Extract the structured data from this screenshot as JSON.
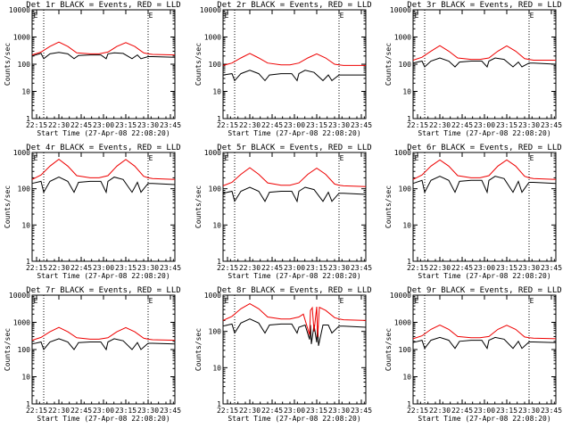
{
  "colors": {
    "events": "#000000",
    "lld": "#ee0000",
    "axis": "#000000"
  },
  "chart_data": [
    {
      "type": "line",
      "title": "Det 1r BLACK = Events, RED = LLD",
      "top_marker": "E",
      "xlabel": "Start Time (27-Apr-08 22:08:20)",
      "ylabel": "Counts/sec",
      "yscale": "log",
      "ylim": [
        1,
        10000
      ],
      "xlim": [
        22.2,
        23.8
      ],
      "x_ticks": [
        "22:15",
        "22:30",
        "22:45",
        "23:00",
        "23:15",
        "23:30",
        "23:45"
      ],
      "y_ticks": [
        "1",
        "10",
        "100",
        "1000",
        "10000"
      ],
      "vlines": [
        22.33,
        23.5
      ],
      "series": [
        {
          "name": "Events",
          "x": [
            22.2,
            22.3,
            22.33,
            22.4,
            22.5,
            22.6,
            22.67,
            22.72,
            22.85,
            22.97,
            23.03,
            23.05,
            23.12,
            23.22,
            23.32,
            23.38,
            23.42,
            23.5,
            23.55,
            23.8
          ],
          "y": [
            200,
            250,
            160,
            240,
            270,
            240,
            160,
            210,
            220,
            220,
            160,
            240,
            260,
            250,
            160,
            220,
            160,
            190,
            190,
            180
          ]
        },
        {
          "name": "LLD",
          "x": [
            22.2,
            22.3,
            22.4,
            22.5,
            22.6,
            22.7,
            22.85,
            22.95,
            23.05,
            23.15,
            23.25,
            23.35,
            23.45,
            23.5,
            23.55,
            23.8
          ],
          "y": [
            220,
            280,
            450,
            650,
            450,
            260,
            240,
            240,
            280,
            450,
            620,
            450,
            260,
            240,
            230,
            220
          ]
        }
      ]
    },
    {
      "type": "line",
      "title": "Det 2r BLACK = Events, RED = LLD",
      "top_marker": "E",
      "xlabel": "Start Time (27-Apr-08 22:08:20)",
      "ylabel": "Counts/sec",
      "yscale": "log",
      "ylim": [
        1,
        10000
      ],
      "xlim": [
        22.2,
        23.8
      ],
      "x_ticks": [
        "22:15",
        "22:30",
        "22:45",
        "23:00",
        "23:15",
        "23:30",
        "23:45"
      ],
      "y_ticks": [
        "1",
        "10",
        "100",
        "1000",
        "10000"
      ],
      "vlines": [
        22.33,
        23.5
      ],
      "series": [
        {
          "name": "Events",
          "x": [
            22.2,
            22.3,
            22.33,
            22.4,
            22.5,
            22.6,
            22.67,
            22.72,
            22.85,
            22.97,
            23.03,
            23.05,
            23.12,
            23.22,
            23.32,
            23.38,
            23.42,
            23.5,
            23.55,
            23.8
          ],
          "y": [
            40,
            45,
            25,
            45,
            60,
            45,
            25,
            40,
            45,
            45,
            25,
            45,
            60,
            50,
            25,
            40,
            25,
            40,
            40,
            40
          ]
        },
        {
          "name": "LLD",
          "x": [
            22.2,
            22.3,
            22.4,
            22.5,
            22.6,
            22.7,
            22.85,
            22.95,
            23.05,
            23.15,
            23.25,
            23.35,
            23.45,
            23.5,
            23.55,
            23.8
          ],
          "y": [
            90,
            110,
            170,
            250,
            170,
            110,
            95,
            95,
            110,
            170,
            240,
            170,
            100,
            95,
            90,
            90
          ]
        }
      ]
    },
    {
      "type": "line",
      "title": "Det 3r BLACK = Events, RED = LLD",
      "top_marker": "E",
      "xlabel": "Start Time (27-Apr-08 22:08:20)",
      "ylabel": "Counts/sec",
      "yscale": "log",
      "ylim": [
        1,
        10000
      ],
      "xlim": [
        22.2,
        23.8
      ],
      "x_ticks": [
        "22:15",
        "22:30",
        "22:45",
        "23:00",
        "23:15",
        "23:30",
        "23:45"
      ],
      "y_ticks": [
        "1",
        "10",
        "100",
        "1000",
        "10000"
      ],
      "vlines": [
        22.33,
        23.5
      ],
      "series": [
        {
          "name": "Events",
          "x": [
            22.2,
            22.3,
            22.33,
            22.4,
            22.5,
            22.6,
            22.67,
            22.72,
            22.85,
            22.97,
            23.03,
            23.05,
            23.12,
            23.22,
            23.32,
            23.38,
            23.42,
            23.5,
            23.55,
            23.8
          ],
          "y": [
            110,
            130,
            80,
            130,
            170,
            130,
            80,
            120,
            130,
            130,
            80,
            130,
            170,
            150,
            80,
            120,
            80,
            110,
            110,
            100
          ]
        },
        {
          "name": "LLD",
          "x": [
            22.2,
            22.3,
            22.4,
            22.5,
            22.6,
            22.7,
            22.85,
            22.95,
            23.05,
            23.15,
            23.25,
            23.35,
            23.45,
            23.5,
            23.55,
            23.8
          ],
          "y": [
            140,
            180,
            300,
            480,
            300,
            170,
            150,
            150,
            170,
            300,
            470,
            300,
            160,
            150,
            140,
            140
          ]
        }
      ]
    },
    {
      "type": "line",
      "title": "Det 4r BLACK = Events, RED = LLD",
      "top_marker": "E",
      "xlabel": "Start Time (27-Apr-08 22:08:20)",
      "ylabel": "Counts/sec",
      "yscale": "log",
      "ylim": [
        1,
        1000
      ],
      "xlim": [
        22.2,
        23.8
      ],
      "x_ticks": [
        "22:15",
        "22:30",
        "22:45",
        "23:00",
        "23:15",
        "23:30",
        "23:45"
      ],
      "y_ticks": [
        "1",
        "10",
        "100",
        "1000"
      ],
      "vlines": [
        22.33,
        23.5
      ],
      "series": [
        {
          "name": "Events",
          "x": [
            22.2,
            22.3,
            22.33,
            22.4,
            22.5,
            22.6,
            22.67,
            22.72,
            22.85,
            22.97,
            23.03,
            23.05,
            23.12,
            23.22,
            23.32,
            23.38,
            23.42,
            23.5,
            23.55,
            23.8
          ],
          "y": [
            140,
            160,
            80,
            160,
            210,
            160,
            80,
            150,
            160,
            160,
            80,
            160,
            210,
            180,
            80,
            150,
            80,
            140,
            140,
            130
          ]
        },
        {
          "name": "LLD",
          "x": [
            22.2,
            22.3,
            22.4,
            22.5,
            22.6,
            22.7,
            22.85,
            22.95,
            23.05,
            23.15,
            23.25,
            23.35,
            23.45,
            23.5,
            23.55,
            23.8
          ],
          "y": [
            180,
            240,
            420,
            650,
            420,
            230,
            200,
            200,
            230,
            420,
            640,
            420,
            220,
            200,
            190,
            180
          ]
        }
      ]
    },
    {
      "type": "line",
      "title": "Det 5r BLACK = Events, RED = LLD",
      "top_marker": "E",
      "xlabel": "Start Time (27-Apr-08 22:08:20)",
      "ylabel": "Counts/sec",
      "yscale": "log",
      "ylim": [
        1,
        1000
      ],
      "xlim": [
        22.2,
        23.8
      ],
      "x_ticks": [
        "22:15",
        "22:30",
        "22:45",
        "23:00",
        "23:15",
        "23:30",
        "23:45"
      ],
      "y_ticks": [
        "1",
        "10",
        "100",
        "1000"
      ],
      "vlines": [
        22.33,
        23.5
      ],
      "series": [
        {
          "name": "Events",
          "x": [
            22.2,
            22.3,
            22.33,
            22.4,
            22.5,
            22.6,
            22.67,
            22.72,
            22.85,
            22.97,
            23.03,
            23.05,
            23.12,
            23.22,
            23.32,
            23.38,
            23.42,
            23.5,
            23.55,
            23.8
          ],
          "y": [
            75,
            85,
            45,
            85,
            110,
            85,
            45,
            80,
            85,
            85,
            45,
            85,
            110,
            95,
            45,
            80,
            45,
            75,
            75,
            70
          ]
        },
        {
          "name": "LLD",
          "x": [
            22.2,
            22.3,
            22.4,
            22.5,
            22.6,
            22.7,
            22.85,
            22.95,
            23.05,
            23.15,
            23.25,
            23.35,
            23.45,
            23.5,
            23.55,
            23.8
          ],
          "y": [
            120,
            150,
            250,
            380,
            250,
            145,
            125,
            125,
            145,
            250,
            370,
            250,
            135,
            125,
            120,
            115
          ]
        }
      ]
    },
    {
      "type": "line",
      "title": "Det 6r BLACK = Events, RED = LLD",
      "top_marker": "E",
      "xlabel": "Start Time (27-Apr-08 22:08:20)",
      "ylabel": "Counts/sec",
      "yscale": "log",
      "ylim": [
        1,
        1000
      ],
      "xlim": [
        22.2,
        23.8
      ],
      "x_ticks": [
        "22:15",
        "22:30",
        "22:45",
        "23:00",
        "23:15",
        "23:30",
        "23:45"
      ],
      "y_ticks": [
        "1",
        "10",
        "100",
        "1000"
      ],
      "vlines": [
        22.33,
        23.5
      ],
      "series": [
        {
          "name": "Events",
          "x": [
            22.2,
            22.3,
            22.33,
            22.4,
            22.5,
            22.6,
            22.67,
            22.72,
            22.85,
            22.97,
            23.03,
            23.05,
            23.12,
            23.22,
            23.32,
            23.38,
            23.42,
            23.5,
            23.55,
            23.8
          ],
          "y": [
            140,
            170,
            80,
            170,
            220,
            170,
            80,
            160,
            170,
            170,
            80,
            170,
            220,
            190,
            80,
            160,
            80,
            150,
            150,
            140
          ]
        },
        {
          "name": "LLD",
          "x": [
            22.2,
            22.3,
            22.4,
            22.5,
            22.6,
            22.7,
            22.85,
            22.95,
            23.05,
            23.15,
            23.25,
            23.35,
            23.45,
            23.5,
            23.55,
            23.8
          ],
          "y": [
            180,
            240,
            420,
            620,
            420,
            230,
            200,
            200,
            230,
            420,
            620,
            420,
            220,
            200,
            190,
            180
          ]
        }
      ]
    },
    {
      "type": "line",
      "title": "Det 7r BLACK = Events, RED = LLD",
      "top_marker": "E",
      "xlabel": "Start Time (27-Apr-08 22:08:20)",
      "ylabel": "Counts/sec",
      "yscale": "log",
      "ylim": [
        1,
        10000
      ],
      "xlim": [
        22.2,
        23.8
      ],
      "x_ticks": [
        "22:15",
        "22:30",
        "22:45",
        "23:00",
        "23:15",
        "23:30",
        "23:45"
      ],
      "y_ticks": [
        "1",
        "10",
        "100",
        "1000",
        "10000"
      ],
      "vlines": [
        22.33,
        23.5
      ],
      "series": [
        {
          "name": "Events",
          "x": [
            22.2,
            22.3,
            22.33,
            22.4,
            22.5,
            22.6,
            22.67,
            22.72,
            22.85,
            22.97,
            23.03,
            23.05,
            23.12,
            23.22,
            23.32,
            23.38,
            23.42,
            23.5,
            23.55,
            23.8
          ],
          "y": [
            160,
            190,
            100,
            190,
            250,
            190,
            100,
            180,
            190,
            190,
            100,
            190,
            250,
            210,
            100,
            180,
            100,
            170,
            170,
            160
          ]
        },
        {
          "name": "LLD",
          "x": [
            22.2,
            22.3,
            22.4,
            22.5,
            22.6,
            22.7,
            22.85,
            22.95,
            23.05,
            23.15,
            23.25,
            23.35,
            23.45,
            23.5,
            23.55,
            23.8
          ],
          "y": [
            220,
            280,
            450,
            650,
            450,
            270,
            240,
            240,
            270,
            450,
            640,
            450,
            260,
            240,
            230,
            220
          ]
        }
      ]
    },
    {
      "type": "line",
      "title": "Det 8r BLACK = Events, RED = LLD",
      "top_marker": "E",
      "xlabel": "Start Time (27-Apr-08 22:08:20)",
      "ylabel": "Counts/sec",
      "yscale": "log",
      "ylim": [
        1,
        1000
      ],
      "xlim": [
        22.2,
        23.8
      ],
      "x_ticks": [
        "22:15",
        "22:30",
        "22:45",
        "23:00",
        "23:15",
        "23:30",
        "23:45"
      ],
      "y_ticks": [
        "1",
        "10",
        "100",
        "1000"
      ],
      "vlines": [
        22.33,
        23.5
      ],
      "series": [
        {
          "name": "Events",
          "x": [
            22.2,
            22.3,
            22.33,
            22.4,
            22.5,
            22.6,
            22.67,
            22.72,
            22.85,
            22.97,
            23.03,
            23.05,
            23.12,
            23.17,
            23.18,
            23.19,
            23.22,
            23.25,
            23.26,
            23.27,
            23.32,
            23.38,
            23.42,
            23.5,
            23.55,
            23.8
          ],
          "y": [
            140,
            160,
            90,
            170,
            220,
            170,
            90,
            150,
            160,
            160,
            90,
            130,
            150,
            60,
            150,
            45,
            150,
            50,
            140,
            40,
            150,
            150,
            90,
            140,
            140,
            130
          ]
        },
        {
          "name": "LLD",
          "x": [
            22.2,
            22.3,
            22.4,
            22.5,
            22.6,
            22.7,
            22.85,
            22.95,
            23.05,
            23.1,
            23.17,
            23.18,
            23.2,
            23.22,
            23.25,
            23.26,
            23.28,
            23.35,
            23.45,
            23.5,
            23.55,
            23.8
          ],
          "y": [
            200,
            260,
            420,
            580,
            420,
            250,
            220,
            220,
            250,
            300,
            80,
            380,
            450,
            100,
            480,
            70,
            460,
            380,
            240,
            220,
            210,
            200
          ]
        }
      ]
    },
    {
      "type": "line",
      "title": "Det 9r BLACK = Events, RED = LLD",
      "top_marker": "E",
      "xlabel": "Start Time (27-Apr-08 22:08:20)",
      "ylabel": "Counts/sec",
      "yscale": "log",
      "ylim": [
        1,
        10000
      ],
      "xlim": [
        22.2,
        23.8
      ],
      "x_ticks": [
        "22:15",
        "22:30",
        "22:45",
        "23:00",
        "23:15",
        "23:30",
        "23:45"
      ],
      "y_ticks": [
        "1",
        "10",
        "100",
        "1000",
        "10000"
      ],
      "vlines": [
        22.33,
        23.5
      ],
      "series": [
        {
          "name": "Events",
          "x": [
            22.2,
            22.3,
            22.33,
            22.4,
            22.5,
            22.6,
            22.67,
            22.72,
            22.85,
            22.97,
            23.03,
            23.05,
            23.12,
            23.22,
            23.32,
            23.38,
            23.42,
            23.5,
            23.55,
            23.8
          ],
          "y": [
            180,
            220,
            110,
            220,
            280,
            220,
            110,
            200,
            220,
            220,
            110,
            220,
            280,
            240,
            110,
            200,
            110,
            190,
            190,
            180
          ]
        },
        {
          "name": "LLD",
          "x": [
            22.2,
            22.3,
            22.4,
            22.5,
            22.6,
            22.7,
            22.85,
            22.95,
            23.05,
            23.15,
            23.25,
            23.35,
            23.45,
            23.5,
            23.55,
            23.8
          ],
          "y": [
            250,
            320,
            550,
            800,
            550,
            300,
            270,
            270,
            300,
            550,
            780,
            550,
            290,
            270,
            260,
            250
          ]
        }
      ]
    }
  ]
}
